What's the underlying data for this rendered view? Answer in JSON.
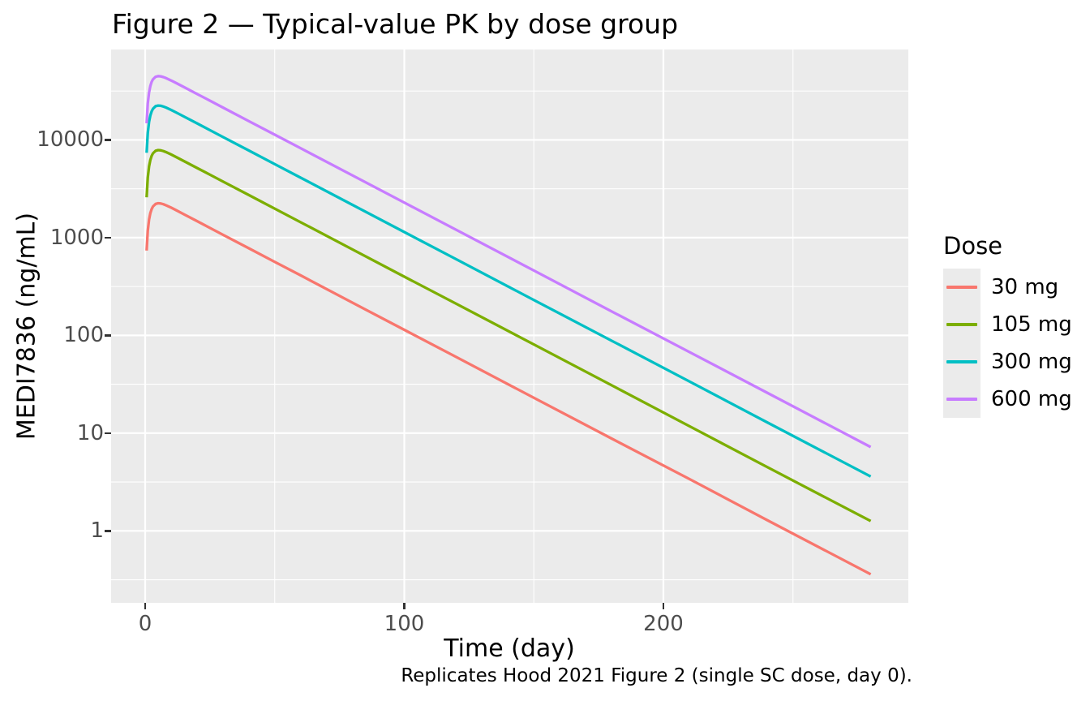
{
  "title": "Figure 2 — Typical-value PK by dose group",
  "caption": "Replicates Hood 2021 Figure 2 (single SC dose, day 0).",
  "colors": {
    "panel_bg": "#EBEBEB",
    "grid": "#FFFFFF",
    "axis_text": "#4D4D4D",
    "tick_mark": "#333333",
    "text": "#000000"
  },
  "axes": {
    "x": {
      "label": "Time (day)",
      "ticks": [
        {
          "value": 0,
          "label": "0"
        },
        {
          "value": 100,
          "label": "100"
        },
        {
          "value": 200,
          "label": "200"
        }
      ],
      "minor": [
        50,
        150,
        250
      ]
    },
    "y": {
      "label": "MEDI7836 (ng/mL)",
      "scale": "log10",
      "ticks": [
        {
          "value": 1,
          "label": "1"
        },
        {
          "value": 10,
          "label": "10"
        },
        {
          "value": 100,
          "label": "100"
        },
        {
          "value": 1000,
          "label": "1000"
        },
        {
          "value": 10000,
          "label": "10000"
        }
      ],
      "minor": [
        0.3162,
        3.162,
        31.62,
        316.2,
        3162,
        31620
      ]
    }
  },
  "legend": {
    "title": "Dose",
    "position": "right",
    "entries": [
      {
        "label": "30 mg",
        "color": "#F8766D"
      },
      {
        "label": "105 mg",
        "color": "#7CAE00"
      },
      {
        "label": "300 mg",
        "color": "#00BFC4"
      },
      {
        "label": "600 mg",
        "color": "#C77CFF"
      }
    ]
  },
  "chart_data": {
    "type": "line",
    "title": "Figure 2 — Typical-value PK by dose group",
    "xlabel": "Time (day)",
    "ylabel": "MEDI7836 (ng/mL)",
    "yscale": "log10",
    "xlim": [
      -13,
      294
    ],
    "ylim": [
      0.19,
      82000
    ],
    "grid": true,
    "legend_position": "right",
    "x": [
      0.55,
      1,
      1.5,
      2,
      2.5,
      3,
      4,
      5,
      6,
      7,
      8,
      10,
      12,
      15,
      20,
      25,
      30,
      40,
      50,
      60,
      80,
      100,
      120,
      150,
      180,
      210,
      240,
      280
    ],
    "series": [
      {
        "name": "30 mg",
        "color": "#F8766D",
        "values": [
          738,
          1175,
          1530,
          1783,
          1960,
          2081,
          2210,
          2247,
          2234,
          2196,
          2145,
          2026,
          1906,
          1732,
          1476,
          1258,
          1072,
          778,
          565,
          411,
          216,
          114,
          60.2,
          23.0,
          8.8,
          3.4,
          1.29,
          0.36
        ]
      },
      {
        "name": "105 mg",
        "color": "#7CAE00",
        "values": [
          2584,
          4113,
          5356,
          6241,
          6860,
          7283,
          7734,
          7863,
          7820,
          7686,
          7506,
          7092,
          6669,
          6063,
          5167,
          4403,
          3752,
          2725,
          1979,
          1437,
          758,
          399,
          211,
          80.7,
          30.9,
          11.8,
          4.5,
          1.26
        ]
      },
      {
        "name": "300 mg",
        "color": "#00BFC4",
        "values": [
          7382,
          11752,
          15304,
          17831,
          19600,
          20809,
          22096,
          22466,
          22343,
          21961,
          21446,
          20263,
          19055,
          17323,
          14763,
          12581,
          10721,
          7785,
          5653,
          4105,
          2164,
          1141,
          602,
          230,
          88.2,
          33.8,
          12.9,
          3.6
        ]
      },
      {
        "name": "600 mg",
        "color": "#C77CFF",
        "values": [
          14763,
          23503,
          30607,
          35661,
          39199,
          41618,
          44192,
          44932,
          44686,
          43923,
          42892,
          40526,
          38110,
          34645,
          29527,
          25163,
          21442,
          15570,
          11306,
          8210,
          4329,
          2283,
          1203,
          461,
          176,
          67.7,
          25.9,
          7.2
        ]
      }
    ]
  }
}
